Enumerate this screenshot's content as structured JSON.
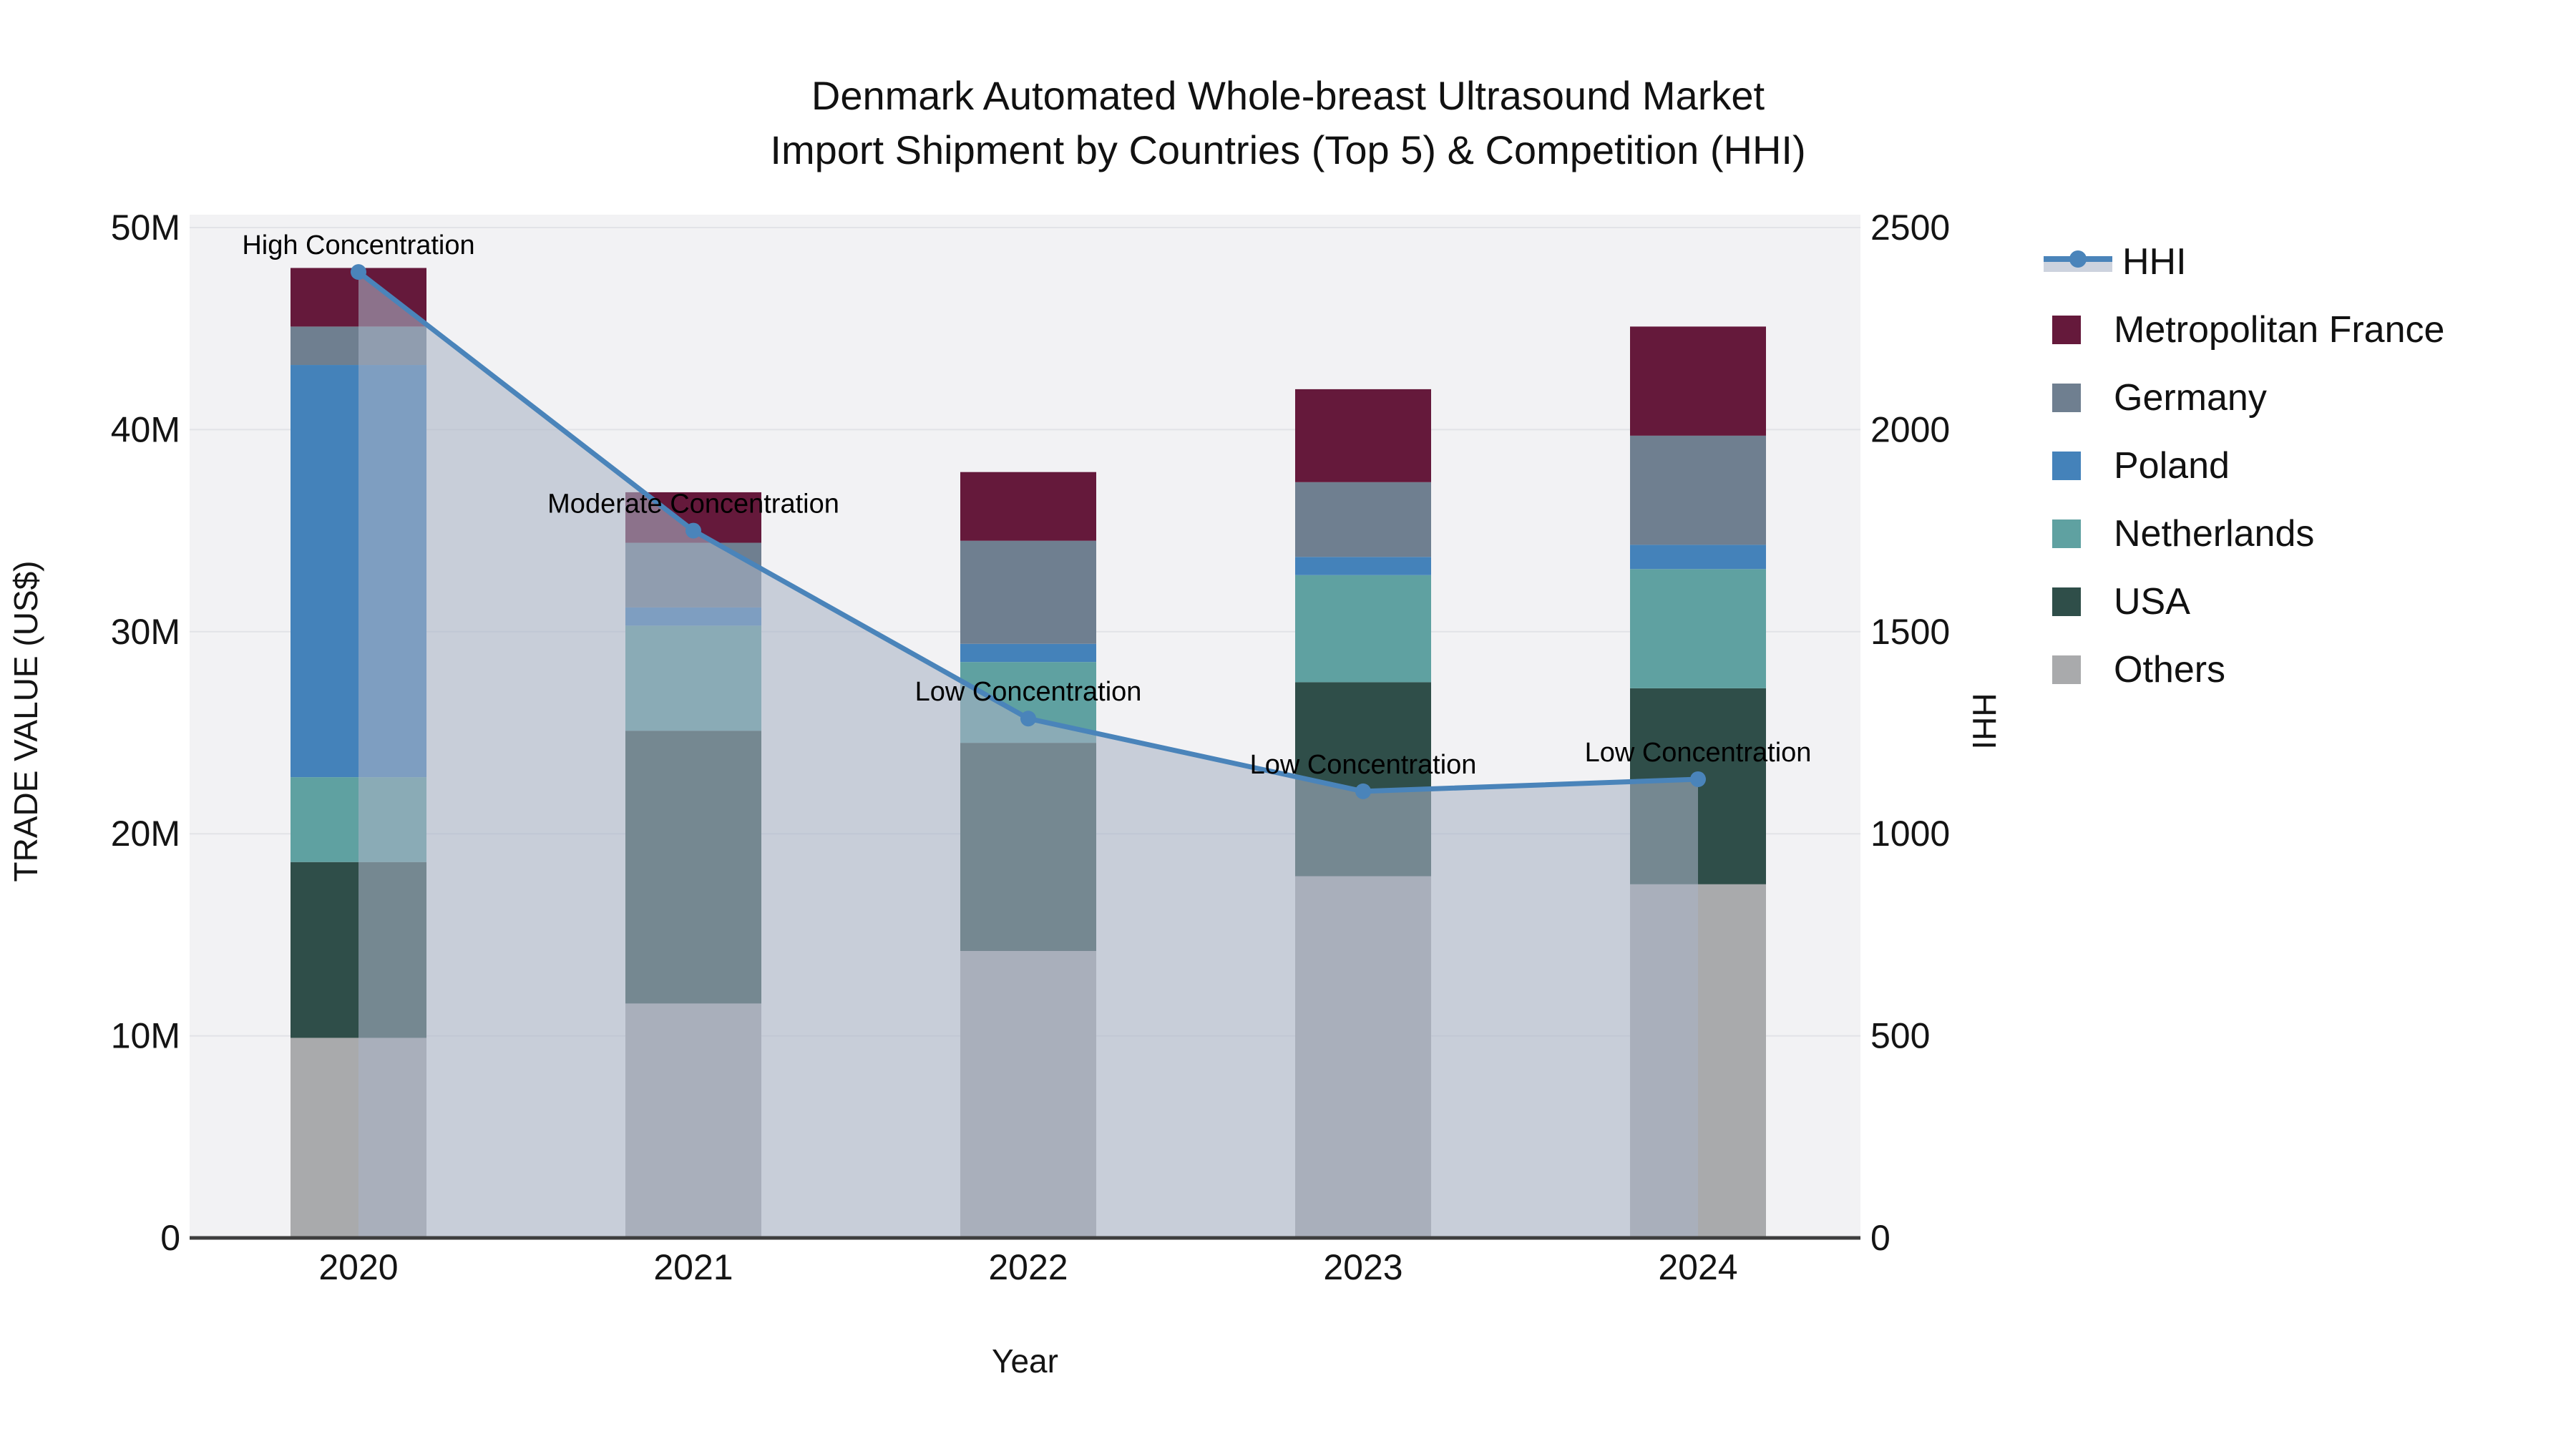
{
  "title": {
    "line1": "Denmark Automated Whole-breast Ultrasound Market",
    "line2": "Import Shipment by Countries (Top 5) & Competition (HHI)"
  },
  "axes": {
    "y_left": {
      "title": "TRADE VALUE (US$)",
      "tick_labels": [
        "0",
        "10M",
        "20M",
        "30M",
        "40M",
        "50M"
      ],
      "range_usd": [
        0,
        50000000
      ]
    },
    "y_right": {
      "title": "HHI",
      "tick_labels": [
        "0",
        "500",
        "1000",
        "1500",
        "2000",
        "2500"
      ],
      "range": [
        0,
        2500
      ]
    },
    "x": {
      "title": "Year",
      "tick_labels": [
        "2020",
        "2021",
        "2022",
        "2023",
        "2024"
      ]
    }
  },
  "legend": {
    "items": [
      {
        "label": "HHI",
        "kind": "line",
        "color_key": "hhi_line"
      },
      {
        "label": "Metropolitan France",
        "kind": "bar",
        "color_key": "france"
      },
      {
        "label": "Germany",
        "kind": "bar",
        "color_key": "germany"
      },
      {
        "label": "Poland",
        "kind": "bar",
        "color_key": "poland"
      },
      {
        "label": "Netherlands",
        "kind": "bar",
        "color_key": "netherlands"
      },
      {
        "label": "USA",
        "kind": "bar",
        "color_key": "usa"
      },
      {
        "label": "Others",
        "kind": "bar",
        "color_key": "others"
      }
    ]
  },
  "colors": {
    "france": "#65193B",
    "germany": "#6F7F90",
    "poland": "#4482BA",
    "netherlands": "#5FA1A1",
    "usa": "#2F4E49",
    "others": "#A9AAAC",
    "hhi_line": "#4A84BA",
    "hhi_area": "rgba(168,180,199,0.58)",
    "plot_bg": "#F2F2F4",
    "grid": "#E2E3E7",
    "axis_line": "#3E3E3E",
    "text": "#141414"
  },
  "chart_data": {
    "type": "combo (stacked bar + line)",
    "categories": [
      "2020",
      "2021",
      "2022",
      "2023",
      "2024"
    ],
    "bar_unit": "million USD",
    "stack_order_bottom_to_top": [
      "Others",
      "USA",
      "Netherlands",
      "Poland",
      "Germany",
      "Metropolitan France"
    ],
    "series": [
      {
        "name": "Metropolitan France",
        "type": "bar",
        "color_key": "france",
        "values_musd": [
          2.9,
          2.5,
          3.4,
          4.6,
          5.4
        ]
      },
      {
        "name": "Germany",
        "type": "bar",
        "color_key": "germany",
        "values_musd": [
          1.9,
          3.2,
          5.1,
          3.7,
          5.4
        ]
      },
      {
        "name": "Poland",
        "type": "bar",
        "color_key": "poland",
        "values_musd": [
          20.4,
          0.9,
          0.9,
          0.9,
          1.2
        ]
      },
      {
        "name": "Netherlands",
        "type": "bar",
        "color_key": "netherlands",
        "values_musd": [
          4.2,
          5.2,
          4.0,
          5.3,
          5.9
        ]
      },
      {
        "name": "USA",
        "type": "bar",
        "color_key": "usa",
        "values_musd": [
          8.7,
          13.5,
          10.3,
          9.6,
          9.7
        ]
      },
      {
        "name": "Others",
        "type": "bar",
        "color_key": "others",
        "values_musd": [
          9.9,
          11.6,
          14.2,
          17.9,
          17.5
        ]
      }
    ],
    "bar_totals_musd": [
      48.0,
      36.9,
      37.9,
      42.0,
      45.1
    ],
    "hhi": {
      "name": "HHI",
      "type": "line+area",
      "axis": "right",
      "values": [
        2390,
        1750,
        1285,
        1105,
        1135
      ]
    },
    "annotations": [
      {
        "category": "2020",
        "text": "High Concentration"
      },
      {
        "category": "2021",
        "text": "Moderate Concentration"
      },
      {
        "category": "2022",
        "text": "Low Concentration"
      },
      {
        "category": "2023",
        "text": "Low Concentration"
      },
      {
        "category": "2024",
        "text": "Low Concentration"
      }
    ],
    "ylim_left_musd": [
      0,
      50
    ],
    "ylim_right": [
      0,
      2500
    ],
    "grid": "on (horizontal, 10M / 500 steps)",
    "legend_position": "right"
  }
}
